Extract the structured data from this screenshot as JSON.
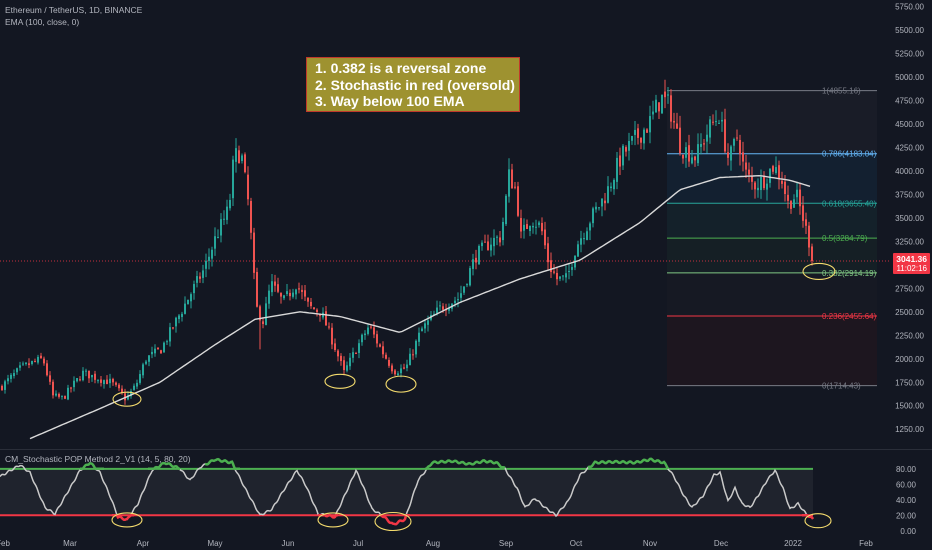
{
  "header": {
    "symbol_line": "Ethereum / TetherUS, 1D, BINANCE",
    "ema_line": "EMA (100, close, 0)"
  },
  "annotation": {
    "lines": [
      "1. 0.382 is a reversal zone",
      "2. Stochastic in red (oversold)",
      "3. Way below 100 EMA"
    ],
    "background": "#9e9230",
    "border": "#c0392b"
  },
  "colors": {
    "background": "#131722",
    "up_candle": "#26a69a",
    "down_candle": "#ef5350",
    "ema": "#d9d9d9",
    "highlight_circle": "#f5dc6e",
    "price_label": "#f23645",
    "stoch_upper": "#4caf50",
    "stoch_lower": "#f23645"
  },
  "chart_data": [
    {
      "type": "candlestick",
      "title": "Ethereum / TetherUS, 1D, BINANCE",
      "x_ticks": [
        "Feb",
        "Mar",
        "Apr",
        "May",
        "Jun",
        "Jul",
        "Aug",
        "Sep",
        "Oct",
        "Nov",
        "Dec",
        "2022",
        "Feb"
      ],
      "y_ticks": [
        "1250.00",
        "1500.00",
        "1750.00",
        "2000.00",
        "2250.00",
        "2500.00",
        "2750.00",
        "3000.00",
        "3250.00",
        "3500.00",
        "3750.00",
        "4000.00",
        "4250.00",
        "4500.00",
        "4750.00",
        "5000.00",
        "5250.00",
        "5500.00",
        "5750.00"
      ],
      "ylim": [
        1050,
        5820
      ],
      "last_price": "3041.36",
      "countdown": "11:02:16",
      "ema_label": "EMA (100, close, 0)",
      "fib_levels": [
        {
          "ratio": 1,
          "price": 4855.16,
          "label": "1(4855.16)"
        },
        {
          "ratio": 0.786,
          "price": 4183.04,
          "label": "0.786(4183.04)"
        },
        {
          "ratio": 0.618,
          "price": 3655.4,
          "label": "0.618(3655.40)"
        },
        {
          "ratio": 0.5,
          "price": 3284.79,
          "label": "0.5(3284.79)"
        },
        {
          "ratio": 0.382,
          "price": 2914.19,
          "label": "0.382(2914.19)"
        },
        {
          "ratio": 0.236,
          "price": 2455.64,
          "label": "0.236(2455.64)"
        },
        {
          "ratio": 0,
          "price": 1714.43,
          "label": "0(1714.43)"
        }
      ],
      "price_anchors": [
        {
          "x": 0,
          "y": 1700
        },
        {
          "x": 8,
          "y": 1780
        },
        {
          "x": 20,
          "y": 1900
        },
        {
          "x": 30,
          "y": 1950
        },
        {
          "x": 42,
          "y": 2000
        },
        {
          "x": 52,
          "y": 1600
        },
        {
          "x": 62,
          "y": 1580
        },
        {
          "x": 72,
          "y": 1720
        },
        {
          "x": 82,
          "y": 1850
        },
        {
          "x": 95,
          "y": 1800
        },
        {
          "x": 110,
          "y": 1750
        },
        {
          "x": 125,
          "y": 1570
        },
        {
          "x": 135,
          "y": 1720
        },
        {
          "x": 145,
          "y": 2000
        },
        {
          "x": 160,
          "y": 2100
        },
        {
          "x": 175,
          "y": 2400
        },
        {
          "x": 190,
          "y": 2700
        },
        {
          "x": 203,
          "y": 2950
        },
        {
          "x": 215,
          "y": 3300
        },
        {
          "x": 228,
          "y": 3600
        },
        {
          "x": 233,
          "y": 4150
        },
        {
          "x": 240,
          "y": 4200
        },
        {
          "x": 248,
          "y": 3600
        },
        {
          "x": 255,
          "y": 2550
        },
        {
          "x": 262,
          "y": 2400
        },
        {
          "x": 270,
          "y": 2800
        },
        {
          "x": 282,
          "y": 2600
        },
        {
          "x": 295,
          "y": 2800
        },
        {
          "x": 308,
          "y": 2550
        },
        {
          "x": 320,
          "y": 2500
        },
        {
          "x": 333,
          "y": 2150
        },
        {
          "x": 343,
          "y": 1850
        },
        {
          "x": 355,
          "y": 2100
        },
        {
          "x": 368,
          "y": 2350
        },
        {
          "x": 380,
          "y": 2100
        },
        {
          "x": 393,
          "y": 1870
        },
        {
          "x": 405,
          "y": 1900
        },
        {
          "x": 420,
          "y": 2300
        },
        {
          "x": 440,
          "y": 2550
        },
        {
          "x": 458,
          "y": 2650
        },
        {
          "x": 475,
          "y": 3100
        },
        {
          "x": 490,
          "y": 3250
        },
        {
          "x": 500,
          "y": 3300
        },
        {
          "x": 508,
          "y": 3950
        },
        {
          "x": 515,
          "y": 3800
        },
        {
          "x": 520,
          "y": 3300
        },
        {
          "x": 530,
          "y": 3500
        },
        {
          "x": 540,
          "y": 3400
        },
        {
          "x": 548,
          "y": 3000
        },
        {
          "x": 556,
          "y": 2850
        },
        {
          "x": 566,
          "y": 2850
        },
        {
          "x": 575,
          "y": 3200
        },
        {
          "x": 590,
          "y": 3500
        },
        {
          "x": 605,
          "y": 3750
        },
        {
          "x": 620,
          "y": 4150
        },
        {
          "x": 635,
          "y": 4350
        },
        {
          "x": 648,
          "y": 4500
        },
        {
          "x": 660,
          "y": 4780
        },
        {
          "x": 668,
          "y": 4700
        },
        {
          "x": 680,
          "y": 4250
        },
        {
          "x": 695,
          "y": 4150
        },
        {
          "x": 708,
          "y": 4450
        },
        {
          "x": 718,
          "y": 4600
        },
        {
          "x": 728,
          "y": 4100
        },
        {
          "x": 737,
          "y": 4400
        },
        {
          "x": 743,
          "y": 4000
        },
        {
          "x": 752,
          "y": 3850
        },
        {
          "x": 762,
          "y": 3900
        },
        {
          "x": 772,
          "y": 4050
        },
        {
          "x": 780,
          "y": 3950
        },
        {
          "x": 787,
          "y": 3650
        },
        {
          "x": 795,
          "y": 3750
        },
        {
          "x": 802,
          "y": 3500
        },
        {
          "x": 808,
          "y": 3250
        },
        {
          "x": 813,
          "y": 3041
        }
      ],
      "ema_anchors": [
        {
          "x": 30,
          "y": 1150
        },
        {
          "x": 100,
          "y": 1470
        },
        {
          "x": 160,
          "y": 1750
        },
        {
          "x": 215,
          "y": 2150
        },
        {
          "x": 255,
          "y": 2420
        },
        {
          "x": 300,
          "y": 2500
        },
        {
          "x": 340,
          "y": 2450
        },
        {
          "x": 400,
          "y": 2280
        },
        {
          "x": 460,
          "y": 2600
        },
        {
          "x": 520,
          "y": 2850
        },
        {
          "x": 580,
          "y": 3050
        },
        {
          "x": 640,
          "y": 3450
        },
        {
          "x": 680,
          "y": 3800
        },
        {
          "x": 720,
          "y": 3930
        },
        {
          "x": 760,
          "y": 3950
        },
        {
          "x": 790,
          "y": 3900
        },
        {
          "x": 812,
          "y": 3830
        }
      ]
    },
    {
      "type": "line",
      "title": "CM_Stochastic POP Method 2_V1 (14, 5, 80, 20)",
      "y_ticks": [
        "0.00",
        "20.00",
        "40.00",
        "60.00",
        "80.00"
      ],
      "ylim": [
        -8,
        103
      ],
      "upper_level": 80,
      "lower_level": 20,
      "anchors": [
        {
          "x": 0,
          "y": 70
        },
        {
          "x": 20,
          "y": 85
        },
        {
          "x": 30,
          "y": 75
        },
        {
          "x": 45,
          "y": 30
        },
        {
          "x": 55,
          "y": 22
        },
        {
          "x": 70,
          "y": 55
        },
        {
          "x": 80,
          "y": 78
        },
        {
          "x": 90,
          "y": 88
        },
        {
          "x": 100,
          "y": 75
        },
        {
          "x": 110,
          "y": 45
        },
        {
          "x": 118,
          "y": 18
        },
        {
          "x": 127,
          "y": 14
        },
        {
          "x": 138,
          "y": 35
        },
        {
          "x": 152,
          "y": 78
        },
        {
          "x": 165,
          "y": 88
        },
        {
          "x": 180,
          "y": 80
        },
        {
          "x": 190,
          "y": 65
        },
        {
          "x": 200,
          "y": 82
        },
        {
          "x": 215,
          "y": 92
        },
        {
          "x": 232,
          "y": 88
        },
        {
          "x": 245,
          "y": 55
        },
        {
          "x": 260,
          "y": 20
        },
        {
          "x": 272,
          "y": 28
        },
        {
          "x": 285,
          "y": 55
        },
        {
          "x": 297,
          "y": 78
        },
        {
          "x": 306,
          "y": 58
        },
        {
          "x": 318,
          "y": 22
        },
        {
          "x": 335,
          "y": 18
        },
        {
          "x": 348,
          "y": 55
        },
        {
          "x": 356,
          "y": 78
        },
        {
          "x": 363,
          "y": 58
        },
        {
          "x": 372,
          "y": 28
        },
        {
          "x": 382,
          "y": 20
        },
        {
          "x": 393,
          "y": 8
        },
        {
          "x": 405,
          "y": 15
        },
        {
          "x": 418,
          "y": 65
        },
        {
          "x": 432,
          "y": 88
        },
        {
          "x": 452,
          "y": 90
        },
        {
          "x": 470,
          "y": 86
        },
        {
          "x": 484,
          "y": 90
        },
        {
          "x": 496,
          "y": 88
        },
        {
          "x": 505,
          "y": 80
        },
        {
          "x": 517,
          "y": 55
        },
        {
          "x": 525,
          "y": 30
        },
        {
          "x": 535,
          "y": 42
        },
        {
          "x": 545,
          "y": 30
        },
        {
          "x": 556,
          "y": 20
        },
        {
          "x": 568,
          "y": 38
        },
        {
          "x": 580,
          "y": 72
        },
        {
          "x": 595,
          "y": 88
        },
        {
          "x": 615,
          "y": 89
        },
        {
          "x": 635,
          "y": 88
        },
        {
          "x": 650,
          "y": 92
        },
        {
          "x": 664,
          "y": 88
        },
        {
          "x": 674,
          "y": 70
        },
        {
          "x": 684,
          "y": 45
        },
        {
          "x": 692,
          "y": 30
        },
        {
          "x": 703,
          "y": 45
        },
        {
          "x": 714,
          "y": 72
        },
        {
          "x": 720,
          "y": 75
        },
        {
          "x": 728,
          "y": 38
        },
        {
          "x": 735,
          "y": 55
        },
        {
          "x": 742,
          "y": 35
        },
        {
          "x": 750,
          "y": 30
        },
        {
          "x": 758,
          "y": 45
        },
        {
          "x": 767,
          "y": 65
        },
        {
          "x": 775,
          "y": 78
        },
        {
          "x": 783,
          "y": 55
        },
        {
          "x": 790,
          "y": 28
        },
        {
          "x": 798,
          "y": 35
        },
        {
          "x": 806,
          "y": 22
        },
        {
          "x": 813,
          "y": 15
        }
      ]
    }
  ]
}
